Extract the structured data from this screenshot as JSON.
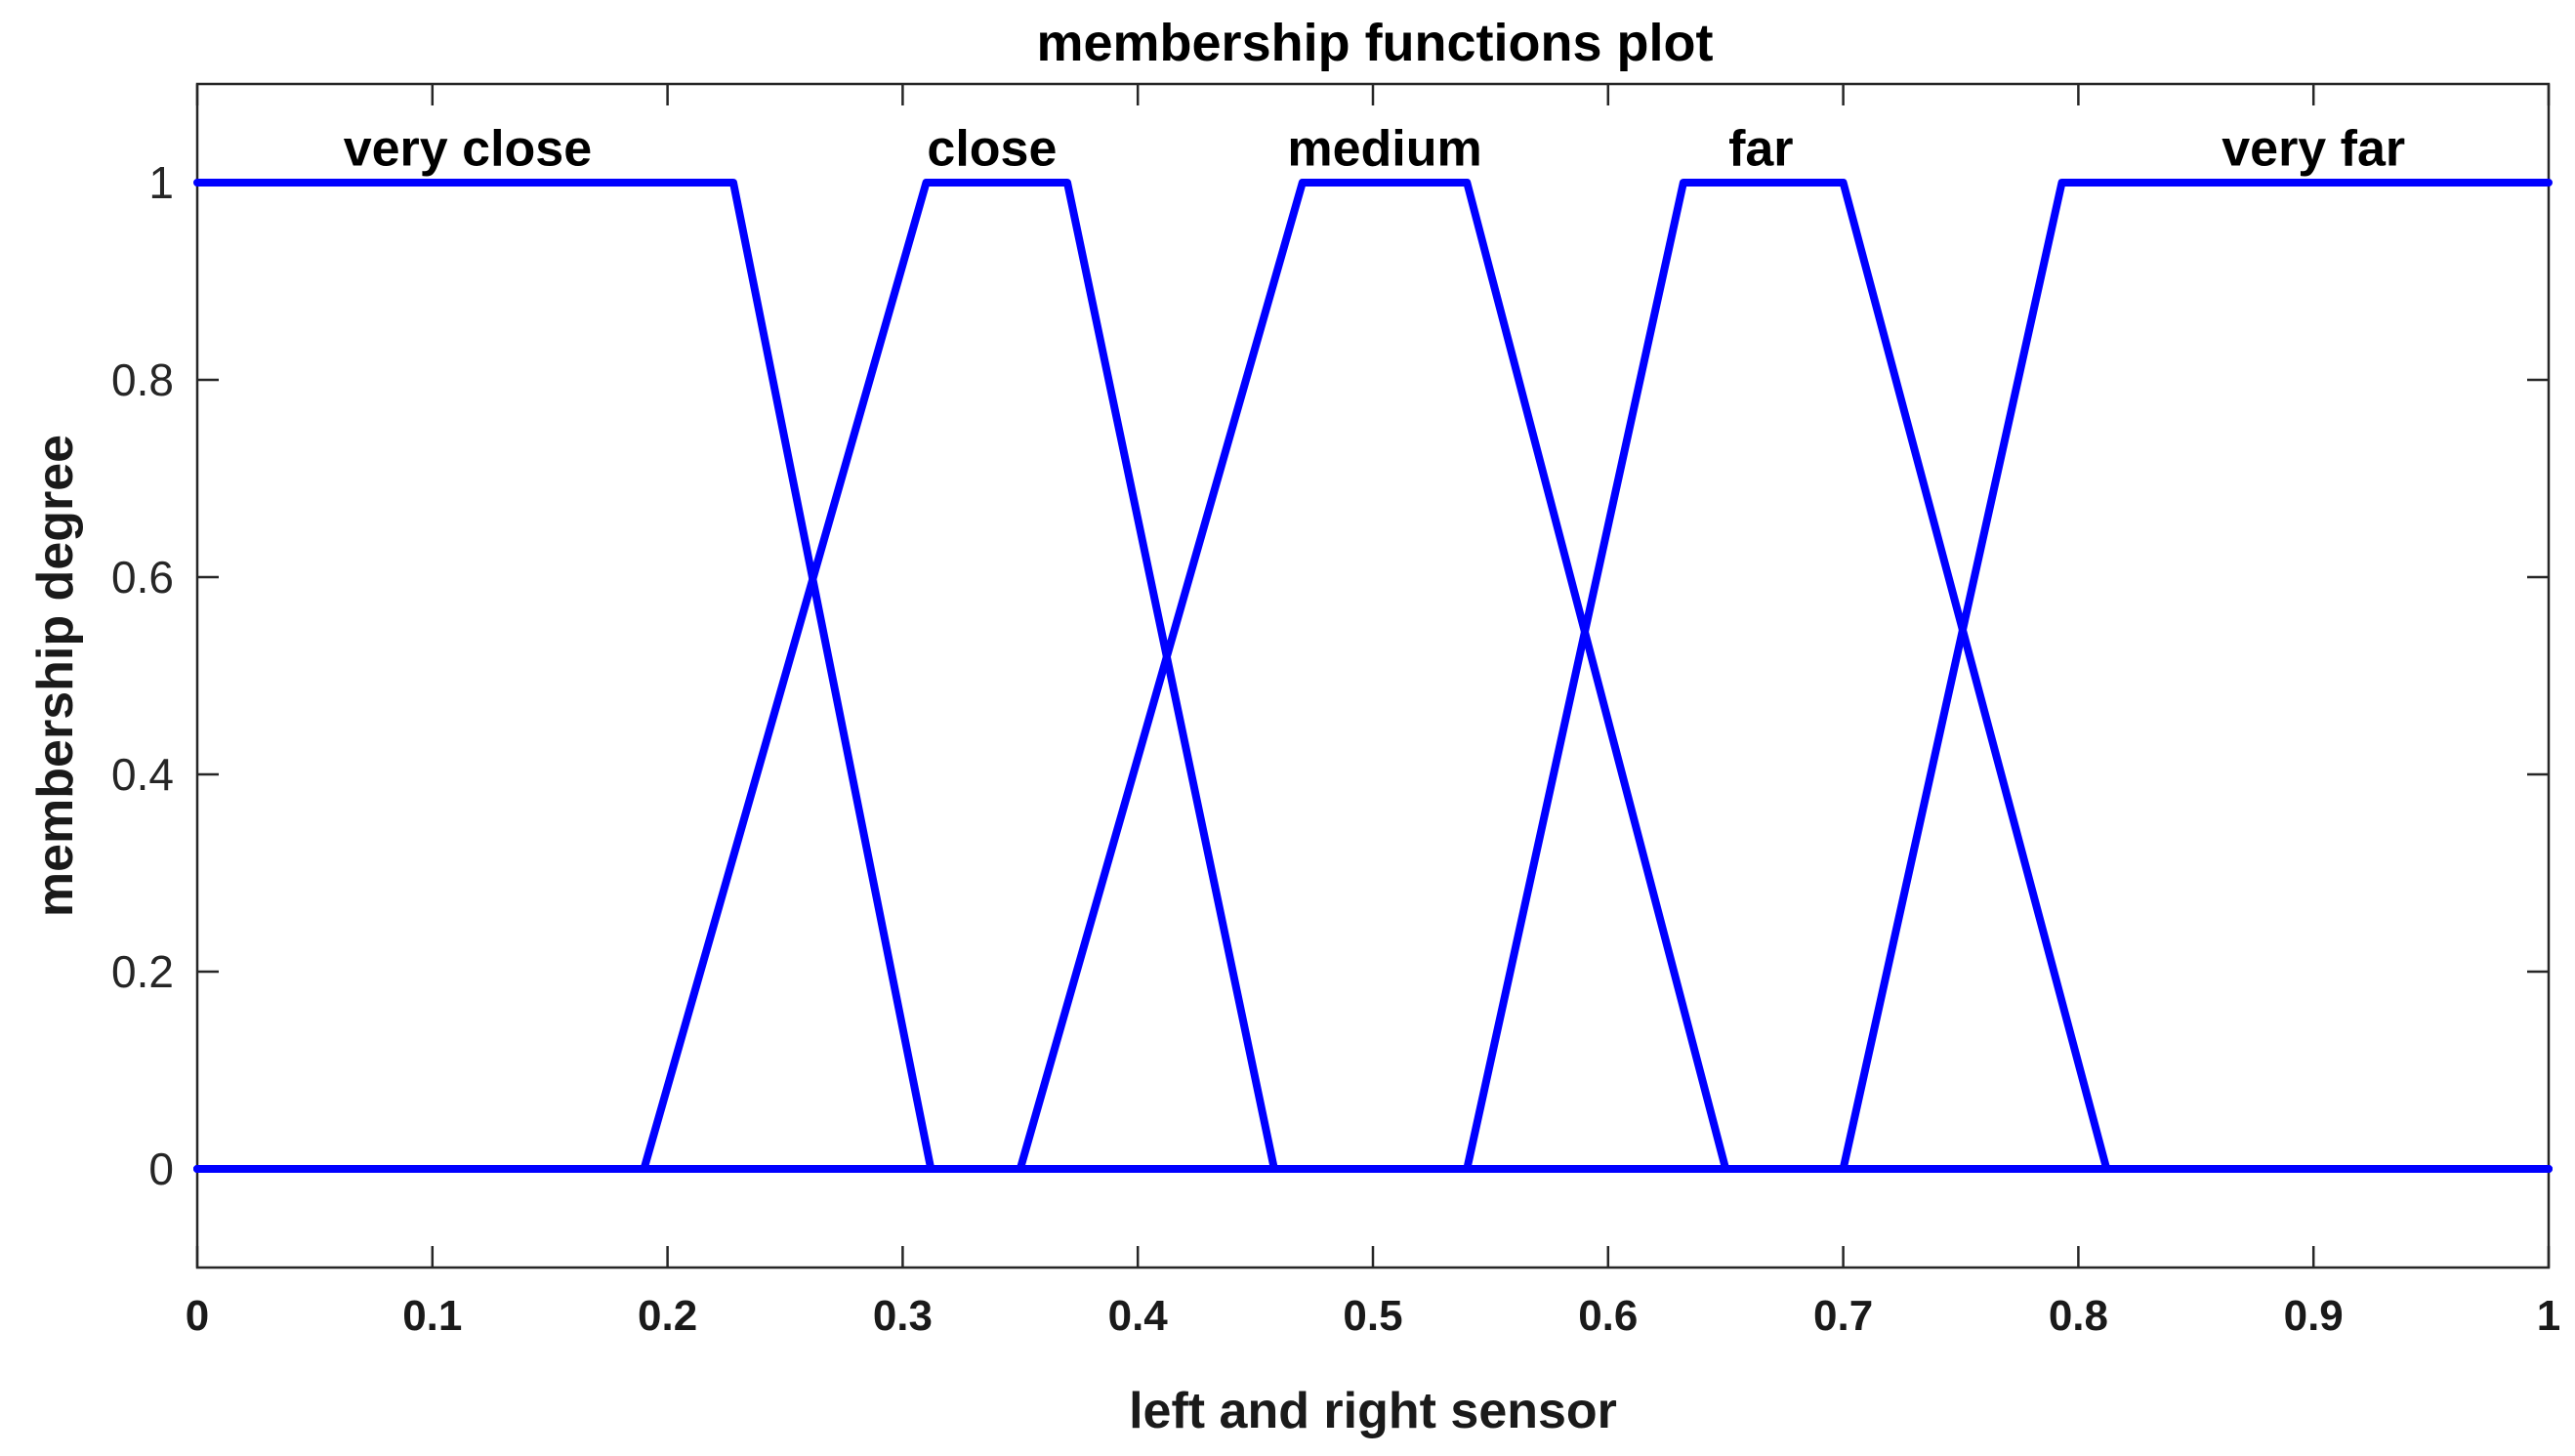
{
  "chart_data": {
    "type": "line",
    "title": "membership functions plot",
    "xlabel": "left and right sensor",
    "ylabel": "membership degree",
    "xlim": [
      0,
      1
    ],
    "ylim": [
      -0.1,
      1.1
    ],
    "xticks": [
      0,
      0.1,
      0.2,
      0.3,
      0.4,
      0.5,
      0.6,
      0.7,
      0.8,
      0.9,
      1
    ],
    "xtick_labels": [
      "0",
      "0.1",
      "0.2",
      "0.3",
      "0.4",
      "0.5",
      "0.6",
      "0.7",
      "0.8",
      "0.9",
      "1"
    ],
    "yticks": [
      0,
      0.2,
      0.4,
      0.6,
      0.8,
      1
    ],
    "ytick_labels": [
      "0",
      "0.2",
      "0.4",
      "0.6",
      "0.8",
      "1"
    ],
    "grid": false,
    "line_color": "#0000ff",
    "series": [
      {
        "name": "very close",
        "label_x": 0.115,
        "label_y": 1.035,
        "x": [
          0,
          0.228,
          0.312,
          1
        ],
        "y": [
          1,
          1,
          0,
          0
        ]
      },
      {
        "name": "close",
        "label_x": 0.338,
        "label_y": 1.035,
        "x": [
          0,
          0.19,
          0.31,
          0.37,
          0.458,
          1
        ],
        "y": [
          0,
          0,
          1,
          1,
          0,
          0
        ]
      },
      {
        "name": "medium",
        "label_x": 0.505,
        "label_y": 1.035,
        "x": [
          0,
          0.35,
          0.47,
          0.54,
          0.65,
          1
        ],
        "y": [
          0,
          0,
          1,
          1,
          0,
          0
        ]
      },
      {
        "name": "far",
        "label_x": 0.665,
        "label_y": 1.035,
        "x": [
          0,
          0.54,
          0.632,
          0.7,
          0.812,
          1
        ],
        "y": [
          0,
          0,
          1,
          1,
          0,
          0
        ]
      },
      {
        "name": "very far",
        "label_x": 0.9,
        "label_y": 1.035,
        "x": [
          0,
          0.7,
          0.793,
          1
        ],
        "y": [
          0,
          0,
          1,
          1
        ]
      }
    ]
  }
}
